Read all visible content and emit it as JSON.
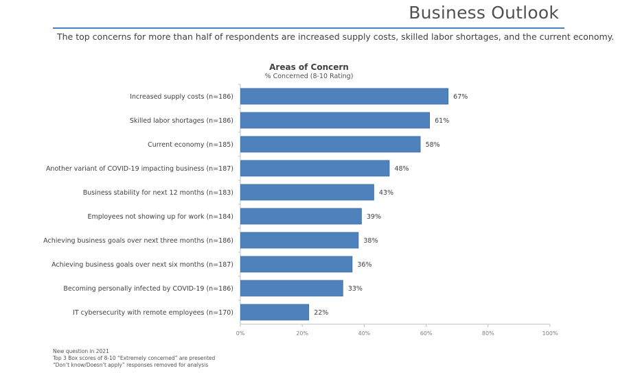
{
  "header": {
    "title": "Business Outlook",
    "subtitle": "The top concerns for more than half of respondents are increased supply costs, skilled labor shortages, and the current economy."
  },
  "chart_data": {
    "type": "bar",
    "orientation": "horizontal",
    "title": "Areas of Concern",
    "subtitle": "% Concerned (8-10 Rating)",
    "xlabel": "",
    "ylabel": "",
    "xlim": [
      0,
      100
    ],
    "x_ticks": [
      "0%",
      "20%",
      "40%",
      "60%",
      "80%",
      "100%"
    ],
    "x_tick_values": [
      0,
      20,
      40,
      60,
      80,
      100
    ],
    "grid": false,
    "legend": "none",
    "bar_color": "#4f81bd",
    "categories": [
      "Increased supply costs (n=186)",
      "Skilled labor shortages (n=186)",
      "Current economy (n=185)",
      "Another variant of COVID-19 impacting business  (n=187)",
      "Business stability for next 12 months (n=183)",
      "Employees not showing up for work (n=184)",
      "Achieving business goals over next three months (n=186)",
      "Achieving business goals over next six months (n=187)",
      "Becoming personally infected by COVID-19 (n=186)",
      "IT cybersecurity with remote employees (n=170)"
    ],
    "values": [
      67,
      61,
      58,
      48,
      43,
      39,
      38,
      36,
      33,
      22
    ],
    "data_labels": [
      "67%",
      "61%",
      "58%",
      "48%",
      "43%",
      "39%",
      "38%",
      "36%",
      "33%",
      "22%"
    ]
  },
  "footnotes": [
    "New question in 2021",
    "Top 3 Box scores of 8-10 “Extremely concerned” are presented",
    "“Don’t know/Doesn’t apply” responses removed for analysis"
  ]
}
